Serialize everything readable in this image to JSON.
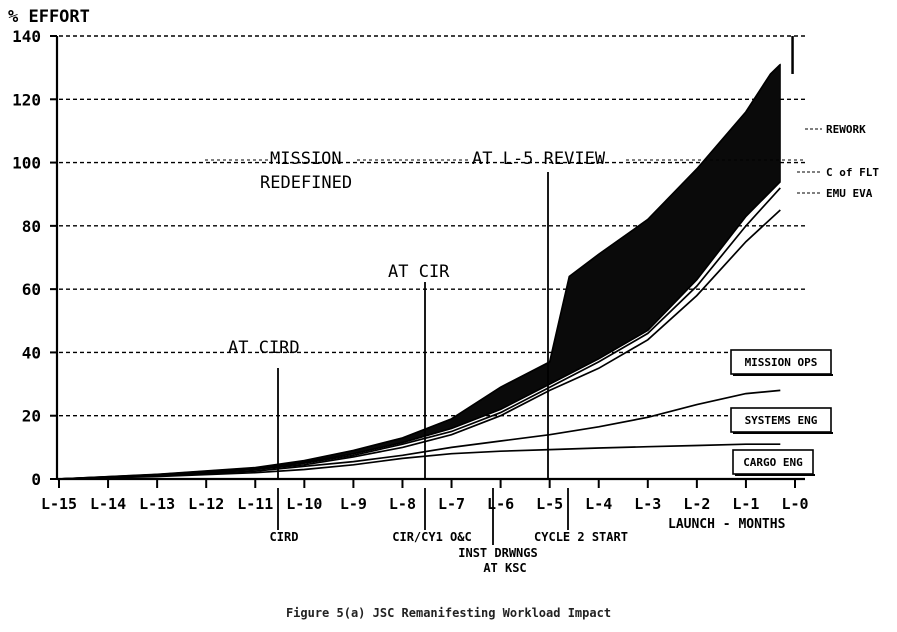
{
  "chart_data": {
    "type": "area",
    "ylabel": "% EFFORT",
    "xlabel": "LAUNCH - MONTHS",
    "caption": "Figure 5(a) JSC Remanifesting Workload Impact",
    "ylim": [
      0,
      140
    ],
    "yticks": [
      0,
      20,
      40,
      60,
      80,
      100,
      120,
      140
    ],
    "xlim": [
      -15,
      0
    ],
    "x_tick_labels": [
      "L-15",
      "L-14",
      "L-13",
      "L-12",
      "L-11",
      "L-10",
      "L-9",
      "L-8",
      "L-7",
      "L-6",
      "L-5",
      "L-4",
      "L-3",
      "L-2",
      "L-1",
      "L-0"
    ],
    "grid": "horizontal dashed",
    "series": [
      {
        "name": "CARGO ENG",
        "x": [
          -15,
          -13,
          -11,
          -10,
          -9,
          -8,
          -7,
          -6,
          -5,
          -4,
          -3,
          -2,
          -1,
          -0.3
        ],
        "values": [
          0,
          0.8,
          2,
          3,
          4.5,
          6.5,
          8,
          8.8,
          9.3,
          9.8,
          10.2,
          10.6,
          11,
          11
        ]
      },
      {
        "name": "SYSTEMS ENG",
        "x": [
          -15,
          -13,
          -11,
          -10,
          -9,
          -8,
          -7,
          -6,
          -5,
          -4,
          -3,
          -2,
          -1,
          -0.3
        ],
        "values": [
          0,
          1,
          2.5,
          4,
          5.5,
          7.5,
          10,
          12,
          14,
          16.5,
          19.5,
          23.5,
          27,
          28
        ]
      },
      {
        "name": "MISSION OPS",
        "x": [
          -15,
          -13,
          -11,
          -10,
          -9,
          -8,
          -7,
          -6,
          -5,
          -4,
          -3,
          -2,
          -1,
          -0.3
        ],
        "values": [
          0,
          1.2,
          3,
          4.5,
          7,
          10,
          14,
          20,
          28,
          35,
          44,
          58,
          75,
          85
        ]
      },
      {
        "name": "EMU EVA",
        "x": [
          -15,
          -13,
          -11,
          -10,
          -9,
          -8,
          -7,
          -6,
          -5,
          -4,
          -3,
          -2,
          -1,
          -0.3
        ],
        "values": [
          0,
          1.3,
          3.2,
          5,
          7.5,
          11,
          15,
          21,
          29,
          37,
          46,
          61,
          80,
          92
        ]
      },
      {
        "name": "C of FLT",
        "x": [
          -15,
          -13,
          -11,
          -10,
          -9,
          -8,
          -7,
          -6,
          -5,
          -4,
          -3,
          -2,
          -1,
          -0.3
        ],
        "values": [
          0,
          1.4,
          3.4,
          5.3,
          8,
          11.5,
          16,
          22,
          30,
          38,
          47,
          63,
          83,
          94
        ]
      },
      {
        "name": "REWORK",
        "x": [
          -15,
          -13,
          -11,
          -10,
          -9,
          -8,
          -7,
          -6,
          -5,
          -4.6,
          -4,
          -3,
          -2,
          -1,
          -0.5,
          -0.3
        ],
        "values": [
          0,
          1.5,
          3.6,
          5.8,
          9,
          13,
          19,
          29,
          37,
          64,
          71,
          82,
          98,
          116,
          128,
          131
        ]
      }
    ],
    "annotations": [
      {
        "text": "AT CIRD",
        "x": -10.5,
        "y": 40
      },
      {
        "text": "AT CIR",
        "x": -7.5,
        "y": 65
      },
      {
        "text": "MISSION",
        "x": -8.7,
        "y": 101
      },
      {
        "text": "REDEFINED",
        "x": -8.7,
        "y": 93
      },
      {
        "text": "AT L-5 REVIEW",
        "x": -5,
        "y": 101
      }
    ],
    "milestones": [
      {
        "label": "CIRD",
        "x": -10.5
      },
      {
        "label": "CIR/CY1 O&C",
        "x": -7.5
      },
      {
        "label": "INST DRWNGS",
        "x": -6
      },
      {
        "label": "AT KSC",
        "x": -6
      },
      {
        "label": "CYCLE 2 START",
        "x": -4.5
      }
    ]
  }
}
